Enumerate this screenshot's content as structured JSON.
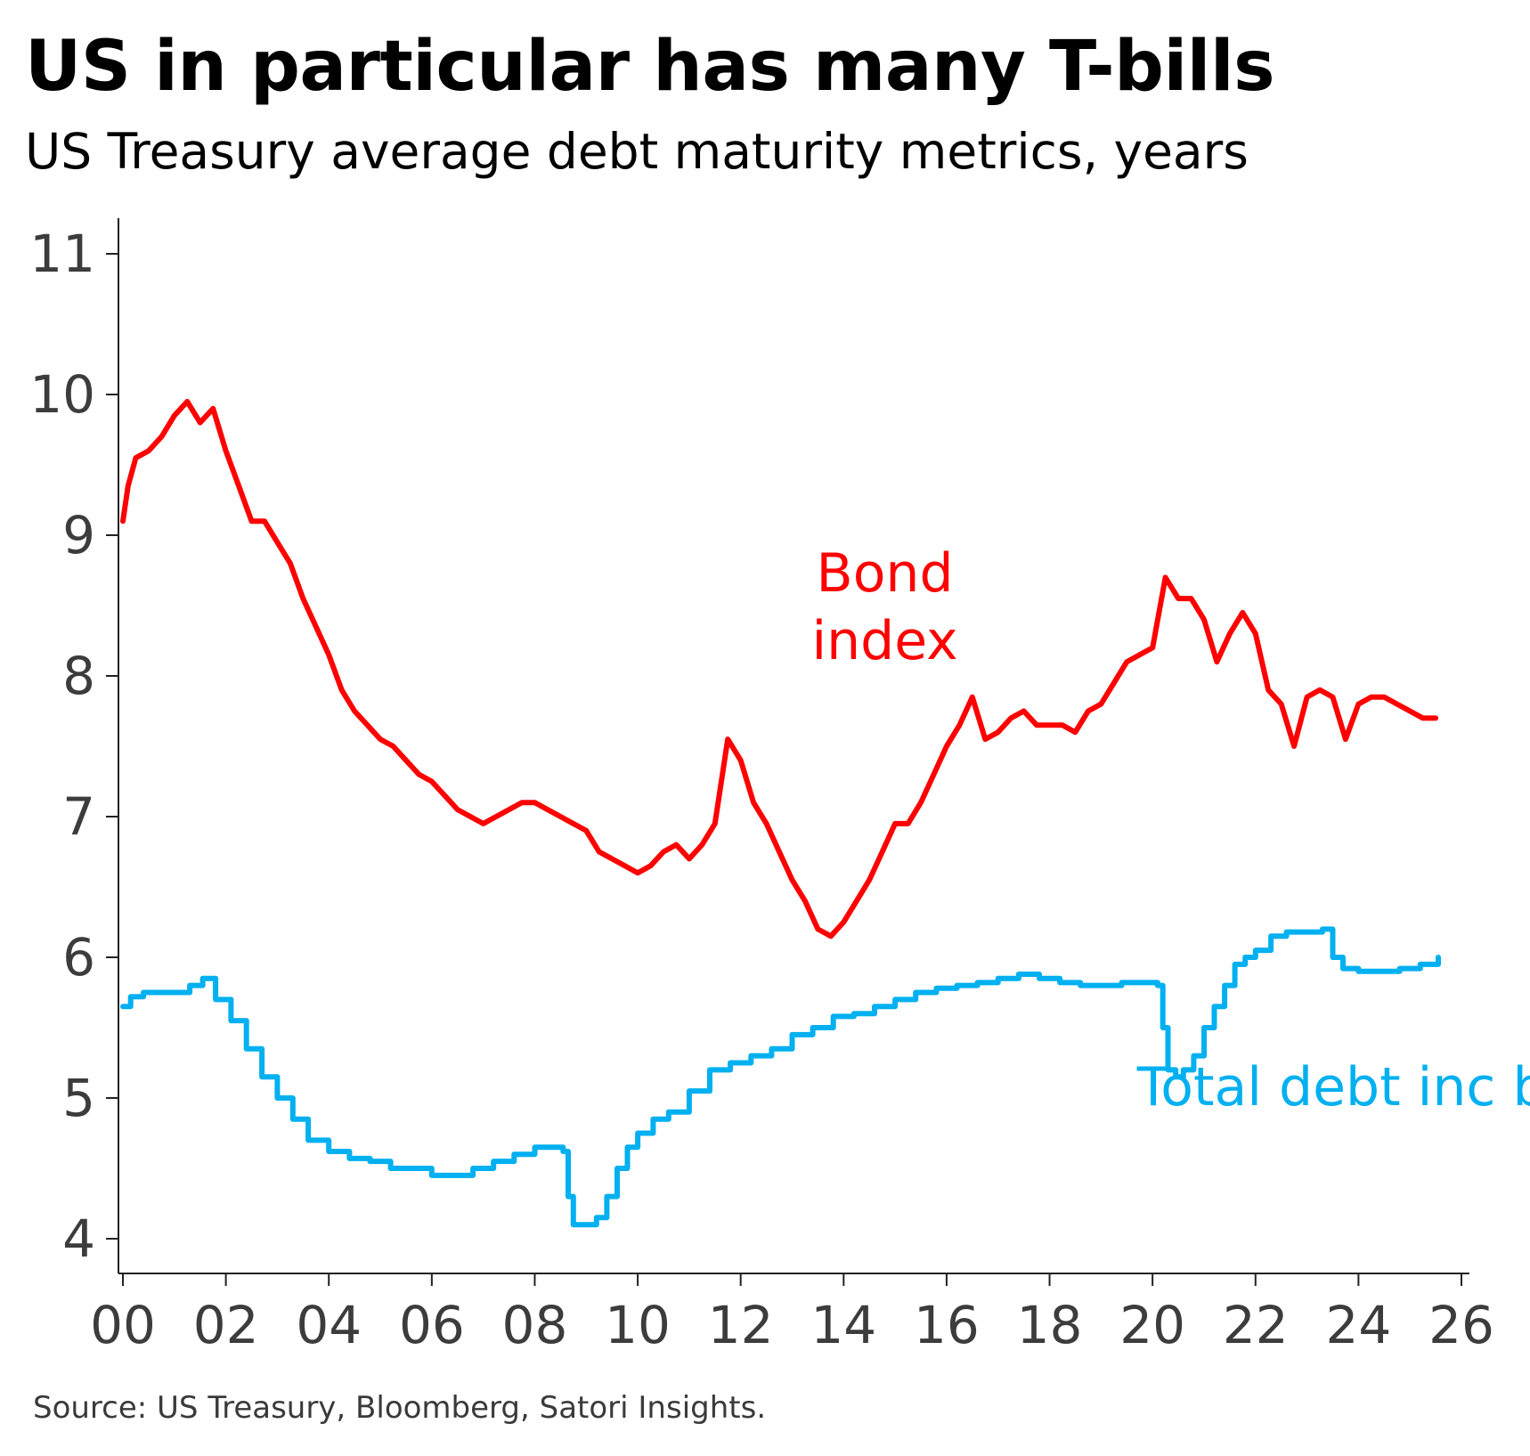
{
  "title": "US in particular has many T-bills",
  "subtitle": "US Treasury average debt maturity metrics, years",
  "source": "Source: US Treasury, Bloomberg, Satori Insights.",
  "chart_data": {
    "type": "line",
    "title": "US in particular has many T-bills",
    "subtitle": "US Treasury average debt maturity metrics, years",
    "xlabel": "",
    "ylabel": "years",
    "xlim": [
      2000,
      2026
    ],
    "ylim": [
      3.75,
      11.25
    ],
    "grid": false,
    "x_ticks": [
      2000,
      2002,
      2004,
      2006,
      2008,
      2010,
      2012,
      2014,
      2016,
      2018,
      2020,
      2022,
      2024,
      2026
    ],
    "x_tick_labels": [
      "00",
      "02",
      "04",
      "06",
      "08",
      "10",
      "12",
      "14",
      "16",
      "18",
      "20",
      "22",
      "24",
      "26"
    ],
    "y_ticks": [
      4,
      5,
      6,
      7,
      8,
      9,
      10,
      11
    ],
    "y_tick_labels": [
      "4",
      "5",
      "6",
      "7",
      "8",
      "9",
      "10",
      "11"
    ],
    "series": [
      {
        "name": "Bond index",
        "label_lines": [
          "Bond",
          "index"
        ],
        "label_anchor": [
          2014.8,
          8.6
        ],
        "color": "#ff0000",
        "x": [
          2000.0,
          2000.1,
          2000.25,
          2000.5,
          2000.75,
          2001.0,
          2001.25,
          2001.5,
          2001.75,
          2002.0,
          2002.25,
          2002.5,
          2002.75,
          2003.0,
          2003.25,
          2003.5,
          2003.75,
          2004.0,
          2004.25,
          2004.5,
          2004.75,
          2005.0,
          2005.25,
          2005.5,
          2005.75,
          2006.0,
          2006.25,
          2006.5,
          2006.75,
          2007.0,
          2007.25,
          2007.5,
          2007.75,
          2008.0,
          2008.25,
          2008.5,
          2008.75,
          2009.0,
          2009.25,
          2009.5,
          2009.75,
          2010.0,
          2010.25,
          2010.5,
          2010.75,
          2011.0,
          2011.25,
          2011.5,
          2011.75,
          2012.0,
          2012.25,
          2012.5,
          2012.75,
          2013.0,
          2013.25,
          2013.5,
          2013.75,
          2014.0,
          2014.25,
          2014.5,
          2014.75,
          2015.0,
          2015.25,
          2015.5,
          2015.75,
          2016.0,
          2016.25,
          2016.5,
          2016.75,
          2017.0,
          2017.25,
          2017.5,
          2017.75,
          2018.0,
          2018.25,
          2018.5,
          2018.75,
          2019.0,
          2019.25,
          2019.5,
          2019.75,
          2020.0,
          2020.25,
          2020.5,
          2020.75,
          2021.0,
          2021.25,
          2021.5,
          2021.75,
          2022.0,
          2022.25,
          2022.5,
          2022.75,
          2023.0,
          2023.25,
          2023.5,
          2023.75,
          2024.0,
          2024.25,
          2024.5,
          2024.75,
          2025.0,
          2025.25,
          2025.5
        ],
        "values": [
          9.1,
          9.35,
          9.55,
          9.6,
          9.7,
          9.85,
          9.95,
          9.8,
          9.9,
          9.6,
          9.35,
          9.1,
          9.1,
          8.95,
          8.8,
          8.55,
          8.35,
          8.15,
          7.9,
          7.75,
          7.65,
          7.55,
          7.5,
          7.4,
          7.3,
          7.25,
          7.15,
          7.05,
          7.0,
          6.95,
          7.0,
          7.05,
          7.1,
          7.1,
          7.05,
          7.0,
          6.95,
          6.9,
          6.75,
          6.7,
          6.65,
          6.6,
          6.65,
          6.75,
          6.8,
          6.7,
          6.8,
          6.95,
          7.55,
          7.4,
          7.1,
          6.95,
          6.75,
          6.55,
          6.4,
          6.2,
          6.15,
          6.25,
          6.4,
          6.55,
          6.75,
          6.95,
          6.95,
          7.1,
          7.3,
          7.5,
          7.65,
          7.85,
          7.55,
          7.6,
          7.7,
          7.75,
          7.65,
          7.65,
          7.65,
          7.6,
          7.75,
          7.8,
          7.95,
          8.1,
          8.15,
          8.2,
          8.7,
          8.55,
          8.55,
          8.4,
          8.1,
          8.3,
          8.45,
          8.3,
          7.9,
          7.8,
          7.5,
          7.85,
          7.9,
          7.85,
          7.55,
          7.8,
          7.85,
          7.85,
          7.8,
          7.75,
          7.7,
          7.7
        ]
      },
      {
        "name": "Total debt inc bills",
        "label_lines": [
          "Total debt inc bills"
        ],
        "label_anchor": [
          2019.7,
          4.95
        ],
        "color": "#00b0f0",
        "x": [
          2000.0,
          2000.15,
          2000.4,
          2001.0,
          2001.3,
          2001.55,
          2001.8,
          2002.1,
          2002.4,
          2002.7,
          2003.0,
          2003.3,
          2003.6,
          2004.0,
          2004.4,
          2004.8,
          2005.2,
          2005.6,
          2006.0,
          2006.4,
          2006.8,
          2007.2,
          2007.6,
          2008.0,
          2008.3,
          2008.55,
          2008.65,
          2008.75,
          2009.0,
          2009.2,
          2009.4,
          2009.6,
          2009.8,
          2010.0,
          2010.3,
          2010.6,
          2011.0,
          2011.4,
          2011.8,
          2012.2,
          2012.6,
          2013.0,
          2013.4,
          2013.8,
          2014.2,
          2014.6,
          2015.0,
          2015.4,
          2015.8,
          2016.2,
          2016.6,
          2017.0,
          2017.4,
          2017.8,
          2018.2,
          2018.6,
          2019.0,
          2019.4,
          2019.8,
          2020.1,
          2020.2,
          2020.3,
          2020.45,
          2020.6,
          2020.8,
          2021.0,
          2021.2,
          2021.4,
          2021.6,
          2021.8,
          2022.0,
          2022.3,
          2022.6,
          2023.0,
          2023.3,
          2023.5,
          2023.7,
          2024.0,
          2024.4,
          2024.8,
          2025.2,
          2025.55
        ],
        "values": [
          5.65,
          5.72,
          5.75,
          5.75,
          5.8,
          5.85,
          5.7,
          5.55,
          5.35,
          5.15,
          5.0,
          4.85,
          4.7,
          4.62,
          4.57,
          4.55,
          4.5,
          4.5,
          4.45,
          4.45,
          4.5,
          4.55,
          4.6,
          4.65,
          4.65,
          4.62,
          4.3,
          4.1,
          4.1,
          4.15,
          4.3,
          4.5,
          4.65,
          4.75,
          4.85,
          4.9,
          5.05,
          5.2,
          5.25,
          5.3,
          5.35,
          5.45,
          5.5,
          5.58,
          5.6,
          5.65,
          5.7,
          5.75,
          5.78,
          5.8,
          5.82,
          5.85,
          5.88,
          5.85,
          5.82,
          5.8,
          5.8,
          5.82,
          5.82,
          5.8,
          5.5,
          5.2,
          5.15,
          5.2,
          5.3,
          5.5,
          5.65,
          5.8,
          5.95,
          6.0,
          6.05,
          6.15,
          6.18,
          6.18,
          6.2,
          6.0,
          5.92,
          5.9,
          5.9,
          5.92,
          5.95,
          6.0
        ]
      }
    ]
  }
}
